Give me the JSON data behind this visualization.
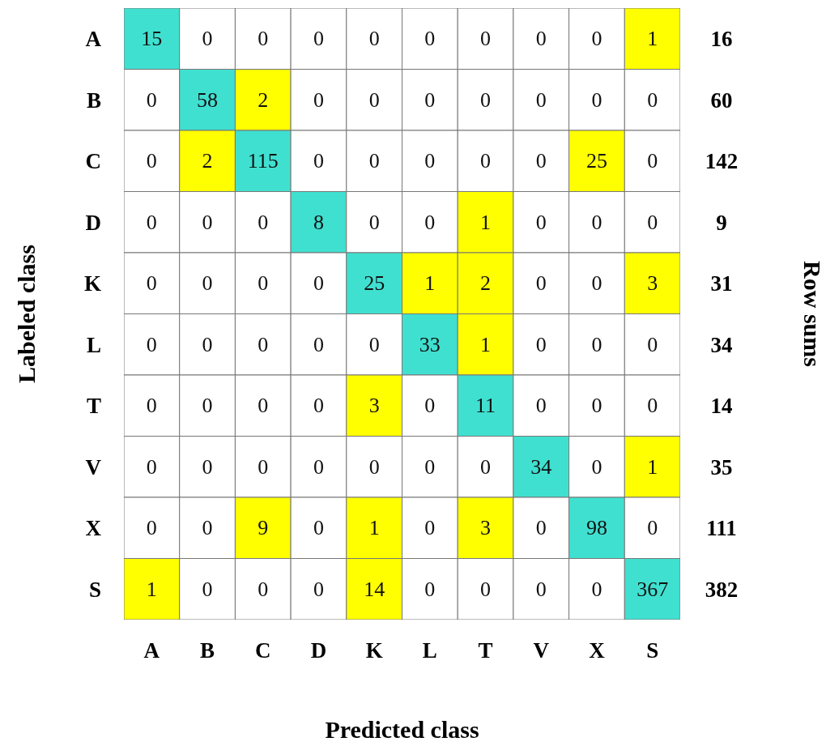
{
  "chart_data": {
    "type": "heatmap",
    "xlabel": "Predicted class",
    "ylabel": "Labeled class",
    "y2label": "Row sums",
    "categories": [
      "A",
      "B",
      "C",
      "D",
      "K",
      "L",
      "T",
      "V",
      "X",
      "S"
    ],
    "y_categories": [
      "A",
      "B",
      "C",
      "D",
      "K",
      "L",
      "T",
      "V",
      "X",
      "S"
    ],
    "y2_categories": [
      "16",
      "60",
      "142",
      "9",
      "31",
      "34",
      "14",
      "35",
      "111",
      "382"
    ],
    "cells": [
      [
        15,
        0,
        0,
        0,
        0,
        0,
        0,
        0,
        0,
        1
      ],
      [
        0,
        58,
        2,
        0,
        0,
        0,
        0,
        0,
        0,
        0
      ],
      [
        0,
        2,
        115,
        0,
        0,
        0,
        0,
        0,
        25,
        0
      ],
      [
        0,
        0,
        0,
        8,
        0,
        0,
        1,
        0,
        0,
        0
      ],
      [
        0,
        0,
        0,
        0,
        25,
        1,
        2,
        0,
        0,
        3
      ],
      [
        0,
        0,
        0,
        0,
        0,
        33,
        1,
        0,
        0,
        0
      ],
      [
        0,
        0,
        0,
        0,
        3,
        0,
        11,
        0,
        0,
        0
      ],
      [
        0,
        0,
        0,
        0,
        0,
        0,
        0,
        34,
        0,
        1
      ],
      [
        0,
        0,
        9,
        0,
        1,
        0,
        3,
        0,
        98,
        0
      ],
      [
        1,
        0,
        0,
        0,
        14,
        0,
        0,
        0,
        0,
        367
      ]
    ],
    "colors": [
      "#ffffff",
      "#ffff00",
      "#40e0d0"
    ],
    "data_labels": true
  }
}
